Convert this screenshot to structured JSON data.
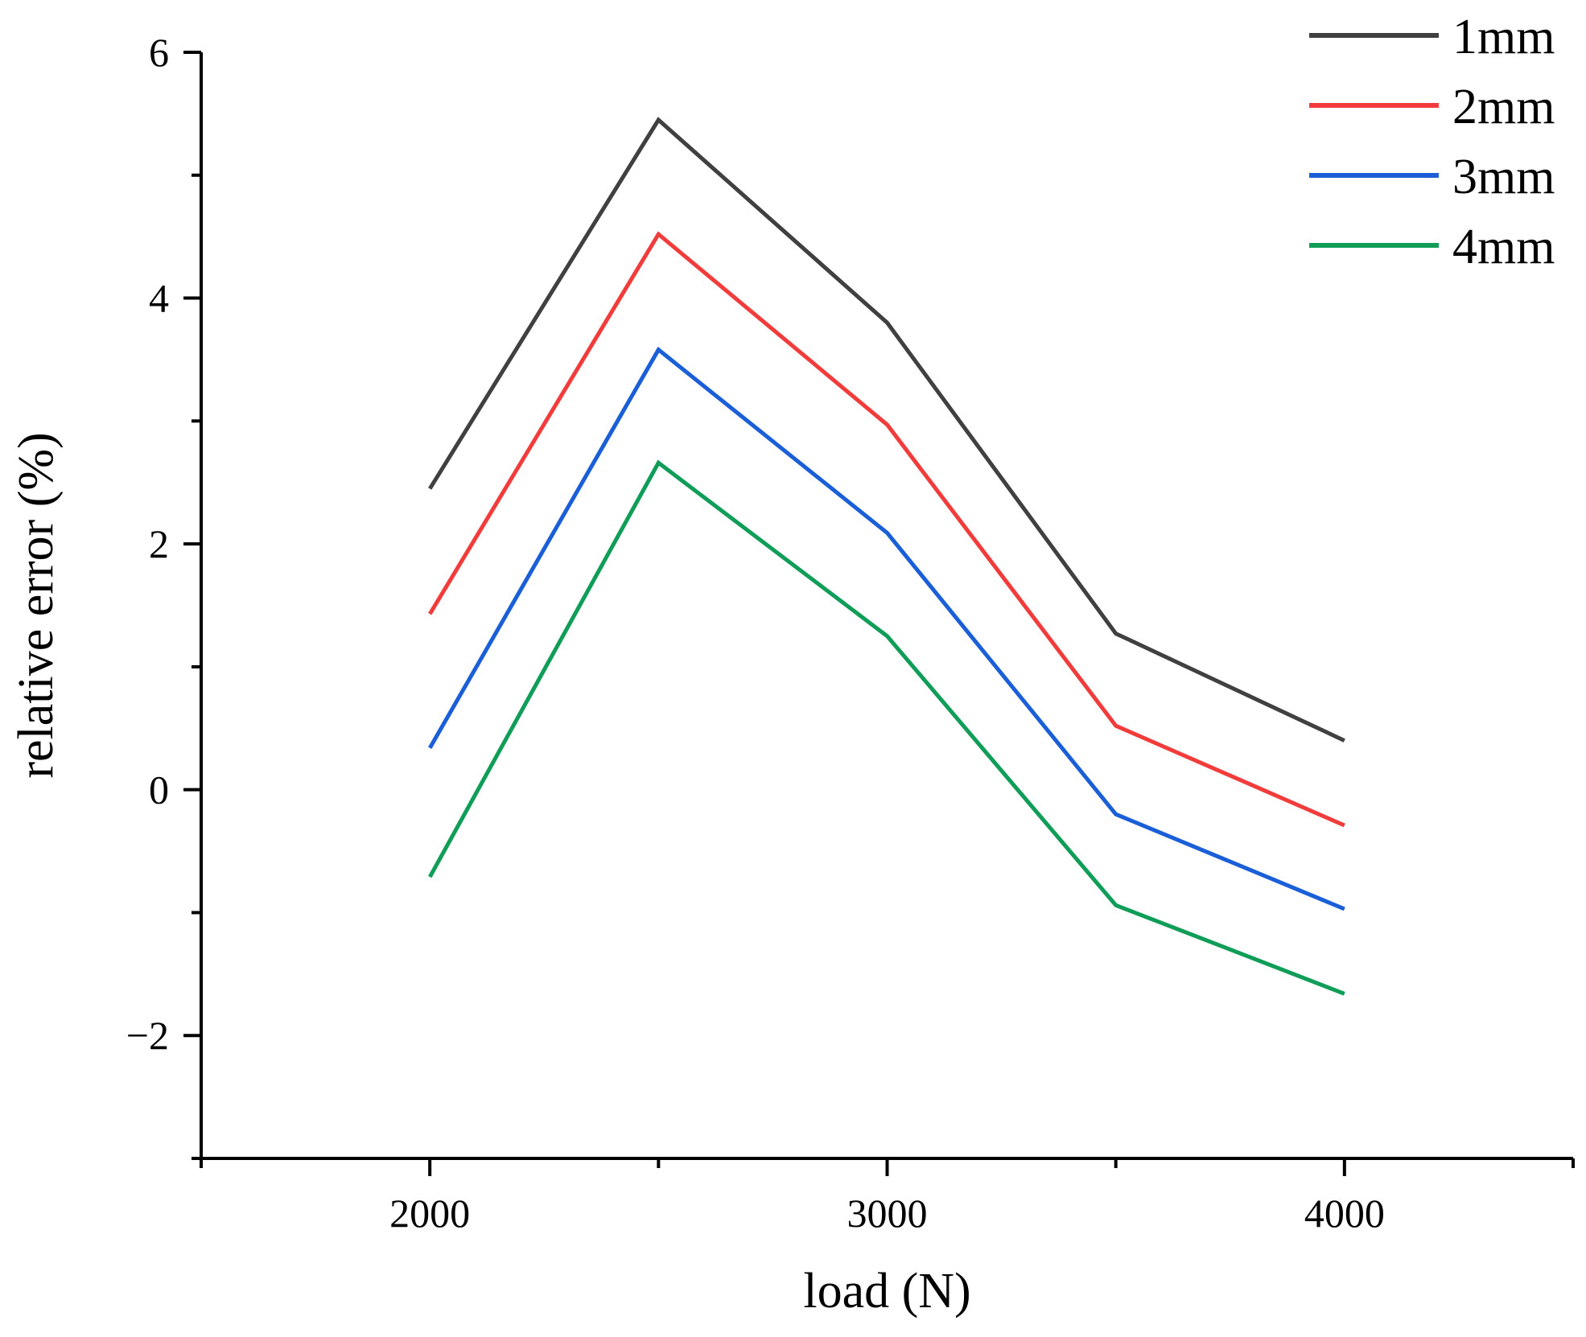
{
  "chart_data": {
    "type": "line",
    "title": "",
    "xlabel": "load (N)",
    "ylabel": "relative error (%)",
    "x": [
      2000,
      2500,
      3000,
      3500,
      4000
    ],
    "xlim": [
      1500,
      4500
    ],
    "ylim": [
      -3,
      6
    ],
    "xticks_major": [
      2000,
      3000,
      4000
    ],
    "xticks_minor": [
      1500,
      2500,
      3500,
      4500
    ],
    "xtick_labels": [
      "2000",
      "3000",
      "4000"
    ],
    "yticks_major": [
      -2,
      0,
      2,
      4,
      6
    ],
    "yticks_minor": [
      -3,
      -1,
      1,
      3,
      5
    ],
    "ytick_labels": [
      "−2",
      "0",
      "2",
      "4",
      "6"
    ],
    "grid": false,
    "legend_position": "top-right",
    "series": [
      {
        "name": "1mm",
        "color": "#404040",
        "values": [
          2.45,
          5.45,
          3.8,
          1.27,
          0.4
        ]
      },
      {
        "name": "2mm",
        "color": "#f23c3c",
        "values": [
          1.43,
          4.52,
          2.97,
          0.52,
          -0.29
        ]
      },
      {
        "name": "3mm",
        "color": "#1a5fd8",
        "values": [
          0.34,
          3.58,
          2.09,
          -0.2,
          -0.97
        ]
      },
      {
        "name": "4mm",
        "color": "#0f9d58",
        "values": [
          -0.71,
          2.66,
          1.25,
          -0.94,
          -1.66
        ]
      }
    ]
  }
}
